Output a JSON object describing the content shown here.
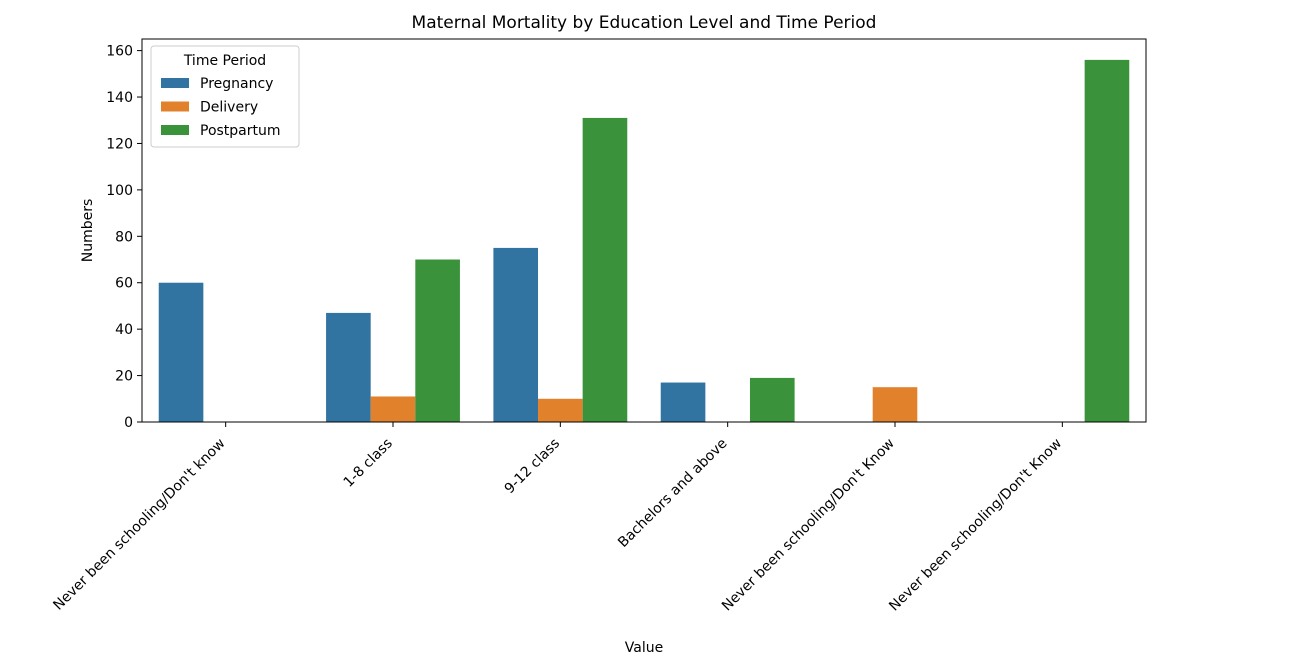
{
  "chart_data": {
    "type": "bar",
    "title": "Maternal Mortality by Education Level and Time Period",
    "xlabel": "Value",
    "ylabel": "Numbers",
    "ylim": [
      0,
      165
    ],
    "yticks": [
      0,
      20,
      40,
      60,
      80,
      100,
      120,
      140,
      160
    ],
    "categories": [
      "Never been schooling/Don't know",
      "1-8 class",
      "9-12 class",
      "Bachelors and above",
      "Never been schooling/Don't  Know",
      "Never been schooling/Don't Know"
    ],
    "legend": {
      "title": "Time Period",
      "placement": "upper-left"
    },
    "grid": false,
    "series": [
      {
        "name": "Pregnancy",
        "color": "#3274a1",
        "values": [
          60,
          47,
          75,
          17,
          0,
          0
        ]
      },
      {
        "name": "Delivery",
        "color": "#e1812c",
        "values": [
          0,
          11,
          10,
          0,
          15,
          0
        ]
      },
      {
        "name": "Postpartum",
        "color": "#3a923a",
        "values": [
          0,
          70,
          131,
          19,
          0,
          156
        ]
      }
    ]
  }
}
